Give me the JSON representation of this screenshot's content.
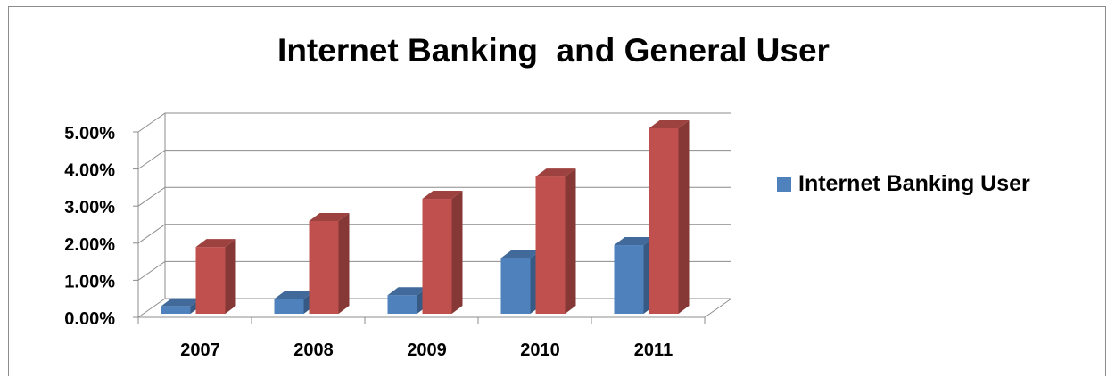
{
  "chart_data": {
    "type": "bar",
    "title": "Internet Banking  and General User",
    "categories": [
      "2007",
      "2008",
      "2009",
      "2010",
      "2011"
    ],
    "yticks": [
      "0.00%",
      "1.00%",
      "2.00%",
      "3.00%",
      "4.00%",
      "5.00%"
    ],
    "ylim": [
      0,
      0.05
    ],
    "grid": true,
    "legend_position": "right",
    "series": [
      {
        "name": "Internet Banking User",
        "values": [
          0.002,
          0.004,
          0.005,
          0.015,
          0.0185
        ],
        "color": "#4f81bd"
      },
      {
        "values": [
          0.018,
          0.025,
          0.031,
          0.037,
          0.05
        ],
        "color": "#c0504d"
      }
    ]
  }
}
